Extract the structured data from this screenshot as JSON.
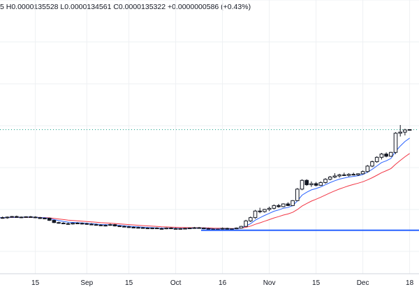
{
  "header": {
    "ohlc_text": "5 H0.0000135528 L0.0000134561 C0.0000135322 +0.0000000586 (+0.43%)"
  },
  "colors": {
    "up": "#089981",
    "down": "#f23645",
    "candle_body": "#131722",
    "ma_fast": "#2962ff",
    "ma_slow": "#f23645",
    "hline": "#2962ff",
    "trendline": "#000000",
    "last_price_line": "#089981",
    "grid": "#eef0f3"
  },
  "chart_data": {
    "type": "candlestick",
    "title": "",
    "x_tick_labels": [
      "15",
      "Sep",
      "15",
      "Oct",
      "16",
      "Nov",
      "15",
      "Dec",
      "18"
    ],
    "grid": true,
    "last_price": 13.53,
    "horizontal_line": {
      "value": 4.35,
      "start_label": "Oct"
    },
    "trendline": {
      "from": [
        98,
        4.35
      ],
      "to": [
        140,
        13.1
      ]
    },
    "price_note": "prices expressed in units of 1e-6; candles approximated from image",
    "candles": [
      [
        5.55,
        5.62,
        5.45,
        5.5
      ],
      [
        5.5,
        5.6,
        5.4,
        5.48
      ],
      [
        5.48,
        5.6,
        5.4,
        5.55
      ],
      [
        5.55,
        5.65,
        5.5,
        5.6
      ],
      [
        5.6,
        5.68,
        5.48,
        5.52
      ],
      [
        5.52,
        5.6,
        5.45,
        5.55
      ],
      [
        5.55,
        5.62,
        5.5,
        5.58
      ],
      [
        5.58,
        5.65,
        5.5,
        5.55
      ],
      [
        5.55,
        5.62,
        5.45,
        5.5
      ],
      [
        5.5,
        5.56,
        5.38,
        5.42
      ],
      [
        5.42,
        5.5,
        5.35,
        5.45
      ],
      [
        5.45,
        5.5,
        5.2,
        5.25
      ],
      [
        5.25,
        5.3,
        5.0,
        5.05
      ],
      [
        5.05,
        5.12,
        4.95,
        5.0
      ],
      [
        5.0,
        5.08,
        4.9,
        4.95
      ],
      [
        4.95,
        5.05,
        4.85,
        4.92
      ],
      [
        4.92,
        5.05,
        4.86,
        5.0
      ],
      [
        5.0,
        5.08,
        4.92,
        4.98
      ],
      [
        4.98,
        5.05,
        4.88,
        4.95
      ],
      [
        4.95,
        5.02,
        4.85,
        4.9
      ],
      [
        4.9,
        5.0,
        4.82,
        4.86
      ],
      [
        4.86,
        4.95,
        4.78,
        4.82
      ],
      [
        4.82,
        4.9,
        4.74,
        4.78
      ],
      [
        4.78,
        4.88,
        4.7,
        4.8
      ],
      [
        4.8,
        4.95,
        4.75,
        4.86
      ],
      [
        4.86,
        4.92,
        4.7,
        4.74
      ],
      [
        4.74,
        4.8,
        4.65,
        4.7
      ],
      [
        4.7,
        4.78,
        4.62,
        4.66
      ],
      [
        4.66,
        4.75,
        4.58,
        4.62
      ],
      [
        4.62,
        4.7,
        4.55,
        4.6
      ],
      [
        4.6,
        4.68,
        4.52,
        4.58
      ],
      [
        4.58,
        4.65,
        4.5,
        4.55
      ],
      [
        4.55,
        4.62,
        4.48,
        4.52
      ],
      [
        4.52,
        4.6,
        4.45,
        4.55
      ],
      [
        4.55,
        4.62,
        4.47,
        4.5
      ],
      [
        4.5,
        4.58,
        4.42,
        4.48
      ],
      [
        4.48,
        4.6,
        4.44,
        4.55
      ],
      [
        4.55,
        4.62,
        4.46,
        4.5
      ],
      [
        4.5,
        4.58,
        4.44,
        4.48
      ],
      [
        4.48,
        4.55,
        4.42,
        4.5
      ],
      [
        4.5,
        4.58,
        4.44,
        4.52
      ],
      [
        4.52,
        4.6,
        4.46,
        4.55
      ],
      [
        4.55,
        4.65,
        4.48,
        4.58
      ],
      [
        4.58,
        4.65,
        4.5,
        4.55
      ],
      [
        4.55,
        4.6,
        4.45,
        4.5
      ],
      [
        4.5,
        4.56,
        4.42,
        4.46
      ],
      [
        4.46,
        4.52,
        4.32,
        4.38
      ],
      [
        4.38,
        4.5,
        4.3,
        4.45
      ],
      [
        4.45,
        4.6,
        4.38,
        4.52
      ],
      [
        4.52,
        4.58,
        4.4,
        4.44
      ],
      [
        4.44,
        4.52,
        4.38,
        4.48
      ],
      [
        4.48,
        4.6,
        4.45,
        4.55
      ],
      [
        4.55,
        4.75,
        4.52,
        4.7
      ],
      [
        4.7,
        5.3,
        4.65,
        5.2
      ],
      [
        5.2,
        5.6,
        5.1,
        5.5
      ],
      [
        5.5,
        6.2,
        5.4,
        6.1
      ],
      [
        6.1,
        6.4,
        5.9,
        6.05
      ],
      [
        6.05,
        6.3,
        5.95,
        6.25
      ],
      [
        6.25,
        6.5,
        6.1,
        6.35
      ],
      [
        6.35,
        6.7,
        6.25,
        6.6
      ],
      [
        6.6,
        6.75,
        6.4,
        6.5
      ],
      [
        6.5,
        6.8,
        6.45,
        6.75
      ],
      [
        6.75,
        6.9,
        6.55,
        6.6
      ],
      [
        6.6,
        7.1,
        6.55,
        7.05
      ],
      [
        7.05,
        8.2,
        7.0,
        8.1
      ],
      [
        8.1,
        9.0,
        8.0,
        8.9
      ],
      [
        8.9,
        9.0,
        8.4,
        8.5
      ],
      [
        8.5,
        8.8,
        8.3,
        8.6
      ],
      [
        8.6,
        8.75,
        8.35,
        8.45
      ],
      [
        8.45,
        8.8,
        8.4,
        8.7
      ],
      [
        8.7,
        9.1,
        8.6,
        9.0
      ],
      [
        9.0,
        9.3,
        8.9,
        9.2
      ],
      [
        9.2,
        9.55,
        9.1,
        9.3
      ],
      [
        9.3,
        9.5,
        9.15,
        9.4
      ],
      [
        9.4,
        9.6,
        9.3,
        9.35
      ],
      [
        9.35,
        9.55,
        9.25,
        9.45
      ],
      [
        9.45,
        9.6,
        9.35,
        9.4
      ],
      [
        9.4,
        9.55,
        9.3,
        9.5
      ],
      [
        9.5,
        9.8,
        9.45,
        9.7
      ],
      [
        9.7,
        10.3,
        9.6,
        10.2
      ],
      [
        10.2,
        10.7,
        10.1,
        10.6
      ],
      [
        10.6,
        11.1,
        10.5,
        11.0
      ],
      [
        11.0,
        11.4,
        10.8,
        11.3
      ],
      [
        11.3,
        11.45,
        11.0,
        11.1
      ],
      [
        11.1,
        11.5,
        11.05,
        11.45
      ],
      [
        11.45,
        13.3,
        11.3,
        13.2
      ],
      [
        13.2,
        13.95,
        12.9,
        13.3
      ],
      [
        13.3,
        13.6,
        13.0,
        13.5
      ],
      [
        13.5,
        13.55,
        13.45,
        13.53
      ]
    ]
  }
}
